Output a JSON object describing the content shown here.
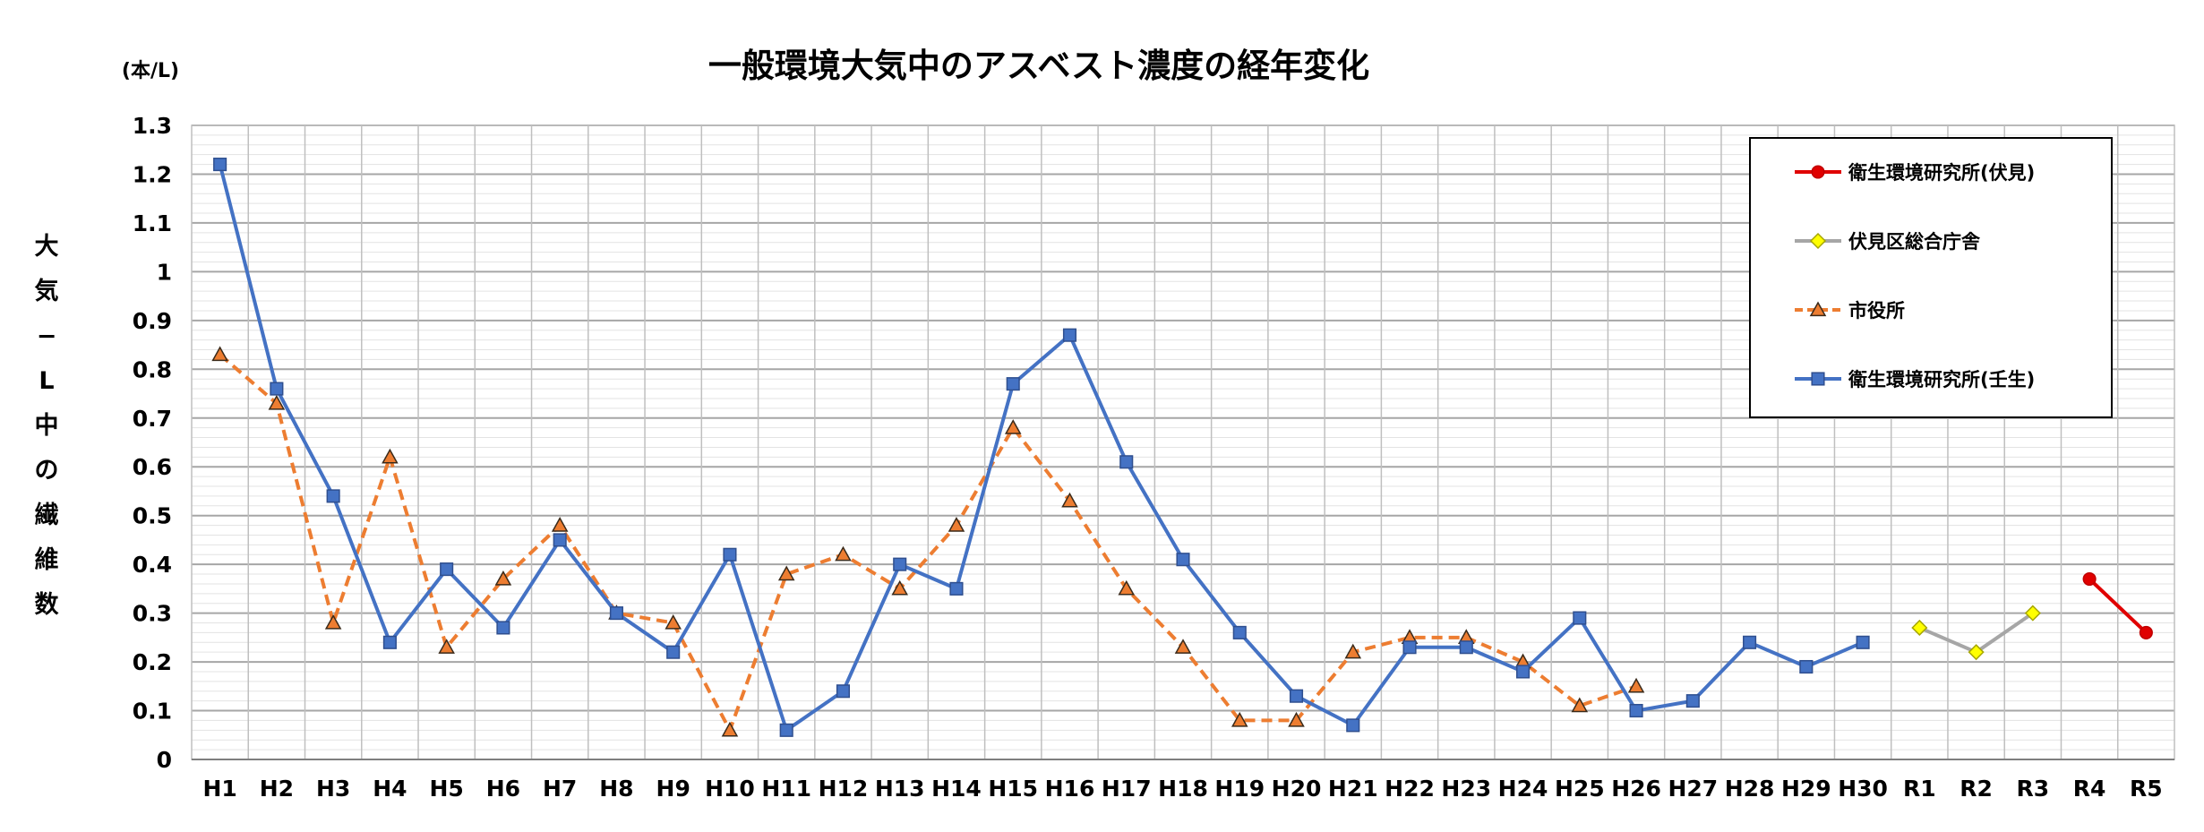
{
  "chart_data": {
    "type": "line",
    "title": "一般環境大気中のアスベスト濃度の経年変化",
    "unit": "(本/L)",
    "ylabel": "大気−L中の繊維数",
    "ylabel_chars": [
      "大",
      "気",
      "−",
      "L",
      "中",
      "の",
      "繊",
      "維",
      "数"
    ],
    "ylim": [
      0,
      1.3
    ],
    "yticks": [
      "0",
      "0.1",
      "0.2",
      "0.3",
      "0.4",
      "0.5",
      "0.6",
      "0.7",
      "0.8",
      "0.9",
      "1",
      "1.1",
      "1.2",
      "1.3"
    ],
    "categories": [
      "H1",
      "H2",
      "H3",
      "H4",
      "H5",
      "H6",
      "H7",
      "H8",
      "H9",
      "H10",
      "H11",
      "H12",
      "H13",
      "H14",
      "H15",
      "H16",
      "H17",
      "H18",
      "H19",
      "H20",
      "H21",
      "H22",
      "H23",
      "H24",
      "H25",
      "H26",
      "H27",
      "H28",
      "H29",
      "H30",
      "R1",
      "R2",
      "R3",
      "R4",
      "R5"
    ],
    "grid": true,
    "legend_position": "top-right",
    "series": [
      {
        "name": "衛生環境研究所(伏見)",
        "color": "#e00000",
        "marker": "circle",
        "dash": false,
        "values": [
          null,
          null,
          null,
          null,
          null,
          null,
          null,
          null,
          null,
          null,
          null,
          null,
          null,
          null,
          null,
          null,
          null,
          null,
          null,
          null,
          null,
          null,
          null,
          null,
          null,
          null,
          null,
          null,
          null,
          null,
          null,
          null,
          null,
          0.37,
          0.26
        ]
      },
      {
        "name": "伏見区総合庁舎",
        "color": "#a6a6a6",
        "marker_fill": "#ffff00",
        "marker": "diamond",
        "dash": false,
        "values": [
          null,
          null,
          null,
          null,
          null,
          null,
          null,
          null,
          null,
          null,
          null,
          null,
          null,
          null,
          null,
          null,
          null,
          null,
          null,
          null,
          null,
          null,
          null,
          null,
          null,
          null,
          null,
          null,
          null,
          null,
          0.27,
          0.22,
          0.3,
          null,
          null
        ]
      },
      {
        "name": "市役所",
        "color": "#ed7d31",
        "marker": "triangle",
        "dash": true,
        "values": [
          0.83,
          0.73,
          0.28,
          0.62,
          0.23,
          0.37,
          0.48,
          0.3,
          0.28,
          0.06,
          0.38,
          0.42,
          0.35,
          0.48,
          0.68,
          0.53,
          0.35,
          0.23,
          0.08,
          0.08,
          0.22,
          0.25,
          0.25,
          0.2,
          0.11,
          0.15,
          null,
          null,
          null,
          null,
          null,
          null,
          null,
          null,
          null
        ]
      },
      {
        "name": "衛生環境研究所(壬生)",
        "color": "#4472c4",
        "marker": "square",
        "dash": false,
        "values": [
          1.22,
          0.76,
          0.54,
          0.24,
          0.39,
          0.27,
          0.45,
          0.3,
          0.22,
          0.42,
          0.06,
          0.14,
          0.4,
          0.35,
          0.77,
          0.87,
          0.61,
          0.41,
          0.26,
          0.13,
          0.07,
          0.23,
          0.23,
          0.18,
          0.29,
          0.1,
          0.12,
          0.24,
          0.19,
          0.24,
          null,
          null,
          null,
          null,
          null
        ]
      }
    ]
  }
}
